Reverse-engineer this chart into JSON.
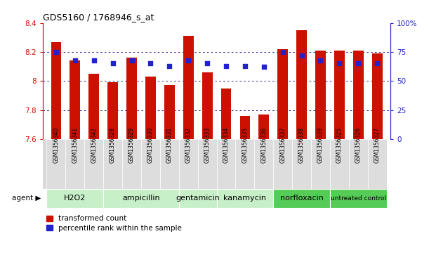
{
  "title": "GDS5160 / 1768946_s_at",
  "samples": [
    "GSM1356340",
    "GSM1356341",
    "GSM1356342",
    "GSM1356328",
    "GSM1356329",
    "GSM1356330",
    "GSM1356331",
    "GSM1356332",
    "GSM1356333",
    "GSM1356334",
    "GSM1356335",
    "GSM1356336",
    "GSM1356337",
    "GSM1356338",
    "GSM1356339",
    "GSM1356325",
    "GSM1356326",
    "GSM1356327"
  ],
  "transformed_count": [
    8.27,
    8.14,
    8.05,
    7.99,
    8.16,
    8.03,
    7.97,
    8.31,
    8.06,
    7.95,
    7.76,
    7.77,
    8.22,
    8.35,
    8.21,
    8.21,
    8.21,
    8.19
  ],
  "percentile_rank": [
    75,
    68,
    68,
    65,
    68,
    65,
    63,
    68,
    65,
    63,
    63,
    62,
    75,
    72,
    68,
    65,
    65,
    65
  ],
  "groups": [
    {
      "label": "H2O2",
      "start": 0,
      "end": 3,
      "color": "#c8f0c8"
    },
    {
      "label": "ampicillin",
      "start": 3,
      "end": 7,
      "color": "#c8f0c8"
    },
    {
      "label": "gentamicin",
      "start": 7,
      "end": 9,
      "color": "#c8f0c8"
    },
    {
      "label": "kanamycin",
      "start": 9,
      "end": 12,
      "color": "#c8f0c8"
    },
    {
      "label": "norfloxacin",
      "start": 12,
      "end": 15,
      "color": "#55cc55"
    },
    {
      "label": "untreated control",
      "start": 15,
      "end": 18,
      "color": "#55cc55"
    }
  ],
  "bar_color": "#cc1100",
  "dot_color": "#2222cc",
  "ylim_left": [
    7.6,
    8.4
  ],
  "ylim_right": [
    0,
    100
  ],
  "yticks_left": [
    7.6,
    7.8,
    8.0,
    8.2,
    8.4
  ],
  "ytick_labels_left": [
    "7.6",
    "7.8",
    "8",
    "8.2",
    "8.4"
  ],
  "yticks_right": [
    0,
    25,
    50,
    75,
    100
  ],
  "ytick_labels_right": [
    "0",
    "25",
    "50",
    "75",
    "100%"
  ],
  "grid_values": [
    7.8,
    8.0,
    8.2
  ],
  "bar_width": 0.55,
  "background_color": "#ffffff",
  "agent_label": "agent"
}
